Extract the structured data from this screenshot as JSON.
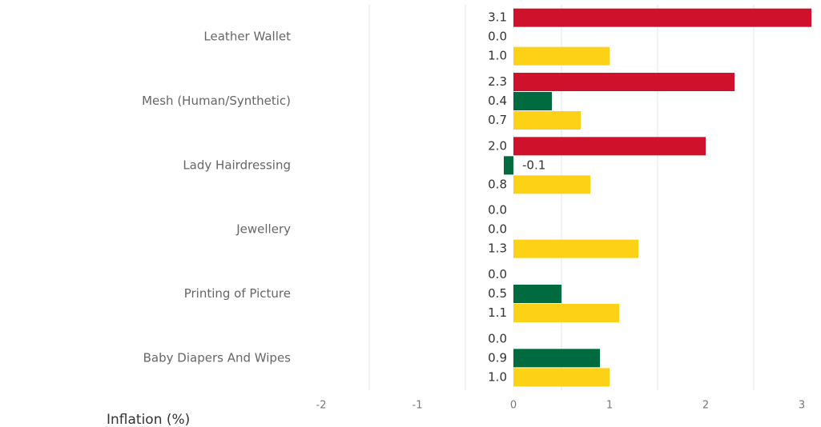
{
  "chart_data": {
    "type": "hbar",
    "categories": [
      "Leather Wallet",
      "Mesh (Human/Synthetic)",
      "Lady Hairdressing",
      "Jewellery",
      "Printing of Picture",
      "Baby Diapers And Wipes"
    ],
    "series": [
      {
        "color": "#d0112b",
        "values": [
          3.1,
          2.3,
          2.0,
          0,
          0,
          0
        ],
        "value_labels": [
          "3.1",
          "2.3",
          "2.0",
          "0.0",
          "0.0",
          "0.0"
        ]
      },
      {
        "color": "#006b3f",
        "values": [
          0,
          0.4,
          -0.1,
          0,
          0.5,
          0.9
        ],
        "value_labels": [
          "0.0",
          "0.4",
          "-0.1",
          "0.0",
          "0.5",
          "0.9"
        ]
      },
      {
        "color": "#fcd116",
        "values": [
          1.0,
          0.7,
          0.8,
          1.3,
          1.1,
          1.0
        ],
        "value_labels": [
          "1.0",
          "0.7",
          "0.8",
          "1.3",
          "1.1",
          "1.0"
        ]
      }
    ],
    "x_label": "Inflation (%)",
    "xlim": [
      -2,
      3.15
    ],
    "xticks": [
      -2,
      -1,
      0,
      1,
      2,
      3
    ],
    "grid_lines": [
      -1.5,
      -0.5,
      0.5,
      1.5,
      2.5
    ],
    "grid": true
  }
}
